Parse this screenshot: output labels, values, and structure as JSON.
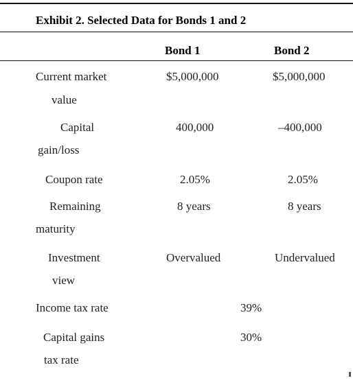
{
  "exhibit": {
    "title": "Exhibit 2. Selected Data for Bonds 1 and 2",
    "columns": [
      "Bond 1",
      "Bond 2"
    ],
    "rows": [
      {
        "label": [
          "Current market",
          "value"
        ],
        "bond1": "$5,000,000",
        "bond2": "$5,000,000"
      },
      {
        "label": [
          "Capital",
          "gain/loss"
        ],
        "bond1": "400,000",
        "bond2": "–400,000"
      },
      {
        "label": [
          "Coupon rate"
        ],
        "bond1": "2.05%",
        "bond2": "2.05%"
      },
      {
        "label": [
          "Remaining",
          "maturity"
        ],
        "bond1": "8 years",
        "bond2": "8 years"
      },
      {
        "label": [
          "Investment",
          "view"
        ],
        "bond1": "Overvalued",
        "bond2": "Undervalued"
      }
    ],
    "shared_rows": [
      {
        "label": [
          "Income tax rate"
        ],
        "value": "39%"
      },
      {
        "label": [
          "Capital gains",
          "tax rate"
        ],
        "value": "30%"
      }
    ]
  }
}
